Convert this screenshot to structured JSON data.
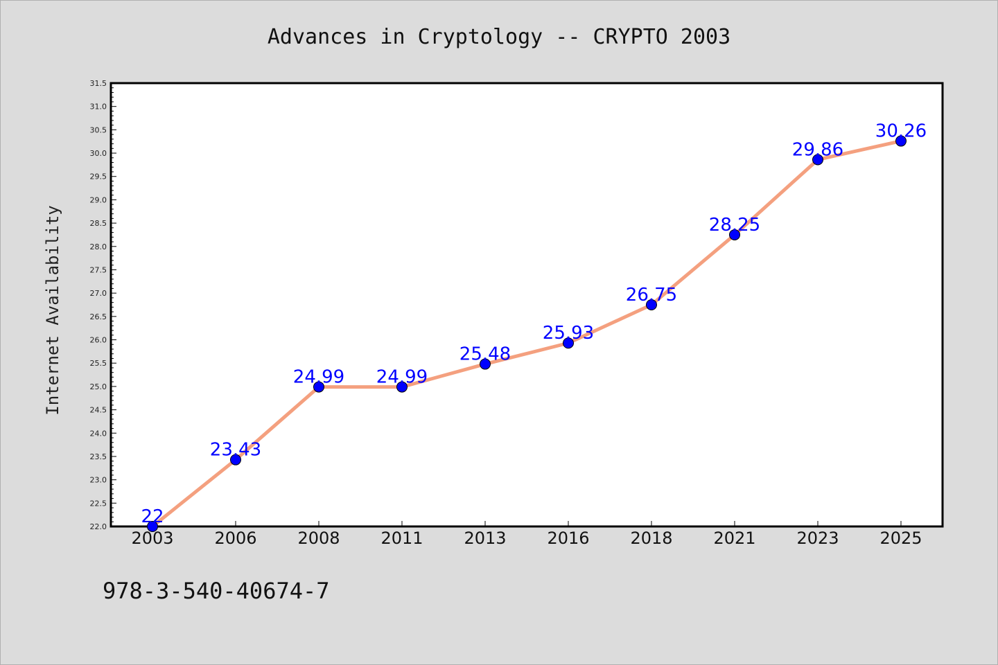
{
  "colors": {
    "background": "#dcdcdc",
    "plot_background": "#ffffff",
    "line": "#f4a07f",
    "marker": "#0000ff",
    "label": "#0000ff"
  },
  "chart_data": {
    "type": "line",
    "title": "Advances in Cryptology -- CRYPTO 2003",
    "xlabel": "",
    "ylabel": "Internet Availability",
    "categories": [
      "2003",
      "2006",
      "2008",
      "2011",
      "2013",
      "2016",
      "2018",
      "2021",
      "2023",
      "2025"
    ],
    "series": [
      {
        "values": [
          22,
          23.43,
          24.99,
          24.99,
          25.48,
          25.93,
          26.75,
          28.25,
          29.86,
          30.26
        ]
      }
    ],
    "data_labels": [
      "22",
      "23.43",
      "24.99",
      "24.99",
      "25.48",
      "25.93",
      "26.75",
      "28.25",
      "29.86",
      "30.26"
    ],
    "ylim": [
      22.0,
      31.5
    ],
    "yticks": [
      "22.0",
      "22.5",
      "23.0",
      "23.5",
      "24.0",
      "24.5",
      "25.0",
      "25.5",
      "26.0",
      "26.5",
      "27.0",
      "27.5",
      "28.0",
      "28.5",
      "29.0",
      "29.5",
      "30.0",
      "30.5",
      "31.0",
      "31.5"
    ],
    "grid": false,
    "legend": "none"
  },
  "footer": {
    "text": "978-3-540-40674-7"
  }
}
